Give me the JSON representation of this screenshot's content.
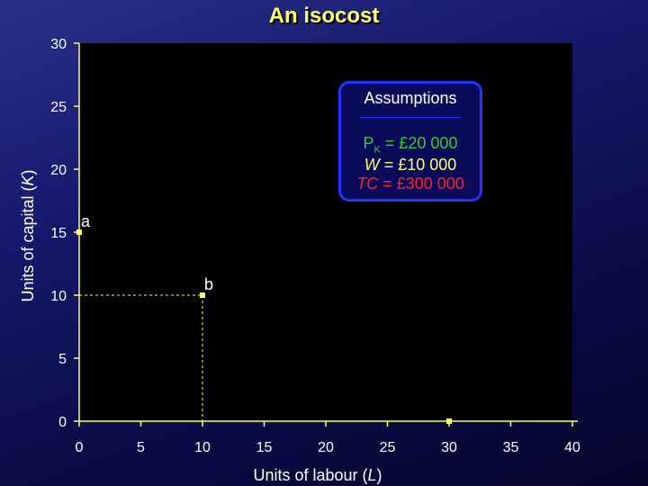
{
  "title": "An isocost",
  "colors": {
    "axis": "#ffff66",
    "tick_label": "#ffffff",
    "point": "#ffff66",
    "dashed": "#ffff66",
    "plot_bg": "#000000",
    "box_border": "#2233ff",
    "pk_text": "#33cc33",
    "w_text": "#ffff66",
    "tc_text": "#ff2222"
  },
  "assumptions": {
    "heading": "Assumptions",
    "pk_label": "P",
    "pk_sub": "K",
    "pk_value": " = £20 000",
    "w_label": "W",
    "w_value": " = £10 000",
    "tc_label": "TC",
    "tc_value": " = £300 000"
  },
  "chart_data": {
    "type": "scatter",
    "xlabel": "Units of labour (L)",
    "ylabel": "Units of capital (K)",
    "xlabel_main": "Units of labour (",
    "xlabel_var": "L",
    "xlabel_end": ")",
    "ylabel_main": "Units of capital (",
    "ylabel_var": "K",
    "ylabel_end": ")",
    "xlim": [
      0,
      40
    ],
    "ylim": [
      0,
      30
    ],
    "xticks": [
      0,
      5,
      10,
      15,
      20,
      25,
      30,
      35,
      40
    ],
    "yticks": [
      0,
      5,
      10,
      15,
      20,
      25,
      30
    ],
    "grid": false,
    "points": [
      {
        "label": "a",
        "x": 0,
        "y": 15
      },
      {
        "label": "b",
        "x": 10,
        "y": 10
      },
      {
        "label": "",
        "x": 30,
        "y": 0
      }
    ],
    "dashed_guides": [
      {
        "x": 10,
        "y": 10
      }
    ]
  }
}
